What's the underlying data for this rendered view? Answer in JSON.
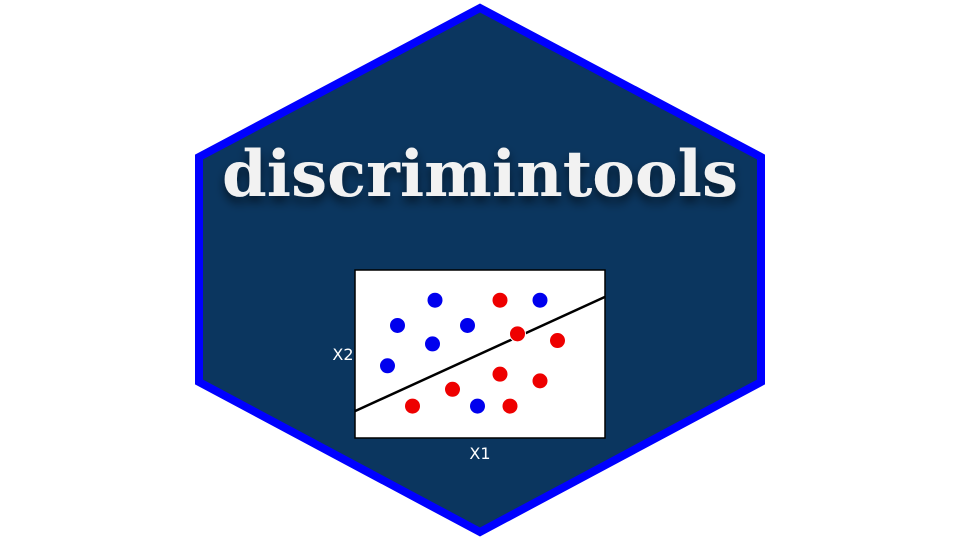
{
  "logo": {
    "title": "discrimintools",
    "colors": {
      "hex_fill": "#0b365f",
      "hex_border": "#0000ff",
      "title_fill": "#f2f2f2",
      "plot_bg": "#ffffff",
      "class_a": "#0000ee",
      "class_b": "#ee0000",
      "boundary": "#000000",
      "axis_label": "#ffffff"
    }
  },
  "chart_data": {
    "type": "scatter",
    "xlabel": "X1",
    "ylabel": "X2",
    "grid": false,
    "legend": "none",
    "xlim": [
      0,
      10
    ],
    "ylim": [
      0,
      10
    ],
    "series": [
      {
        "color": "#0000ee",
        "points": [
          [
            3.2,
            8.2
          ],
          [
            7.4,
            8.2
          ],
          [
            1.7,
            6.7
          ],
          [
            4.5,
            6.7
          ],
          [
            3.1,
            5.6
          ],
          [
            1.3,
            4.3
          ],
          [
            4.9,
            1.9
          ]
        ]
      },
      {
        "color": "#ee0000",
        "points": [
          [
            5.8,
            8.2
          ],
          [
            6.5,
            6.2
          ],
          [
            8.1,
            5.8
          ],
          [
            5.8,
            3.8
          ],
          [
            7.4,
            3.4
          ],
          [
            3.9,
            2.9
          ],
          [
            2.3,
            1.9
          ],
          [
            6.2,
            1.9
          ]
        ]
      }
    ],
    "decision_boundary": {
      "from": [
        0,
        1.6
      ],
      "to": [
        10,
        8.4
      ]
    }
  }
}
